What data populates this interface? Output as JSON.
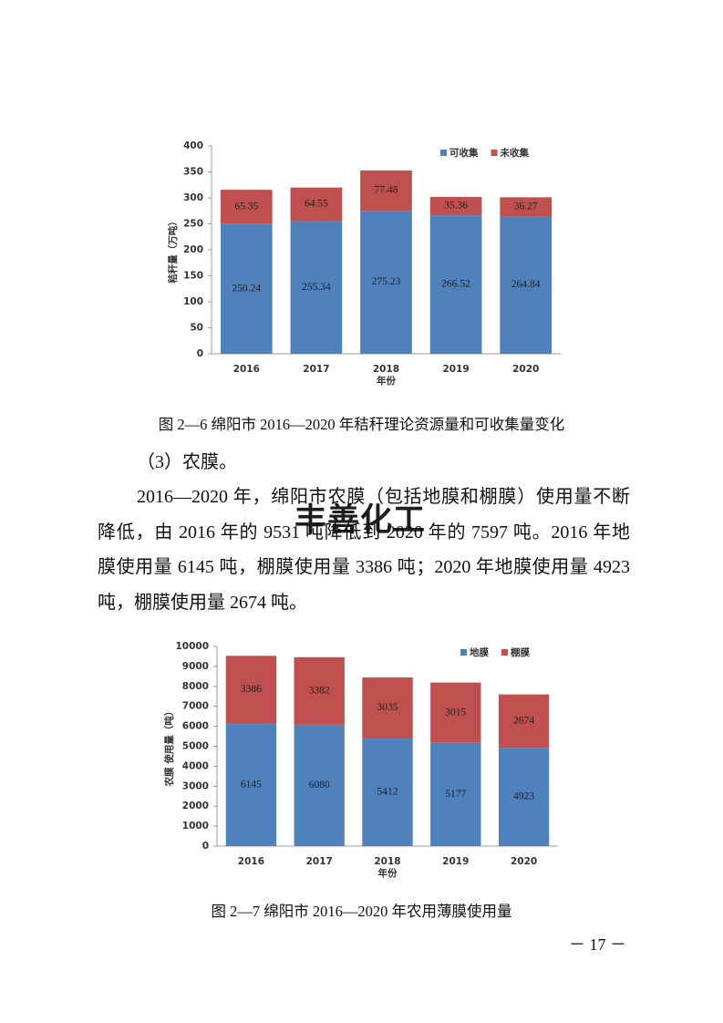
{
  "chart_data": [
    {
      "type": "bar",
      "stacked": true,
      "x_label": "年份",
      "y_label": "秸秆量（万吨）",
      "categories": [
        "2016",
        "2017",
        "2018",
        "2019",
        "2020"
      ],
      "series": [
        {
          "name": "可收集",
          "color": "#4f81bd",
          "values": [
            250.24,
            255.34,
            275.23,
            266.52,
            264.84
          ]
        },
        {
          "name": "未收集",
          "color": "#c0504d",
          "values": [
            65.35,
            64.55,
            77.48,
            35.36,
            36.27
          ]
        }
      ],
      "ylim": [
        0,
        400
      ],
      "yticks": [
        0,
        50,
        100,
        150,
        200,
        250,
        300,
        350,
        400
      ],
      "legend": "top-right"
    },
    {
      "type": "bar",
      "stacked": true,
      "x_label": "年份",
      "y_label": "农膜 使用量（吨）",
      "categories": [
        "2016",
        "2017",
        "2018",
        "2019",
        "2020"
      ],
      "series": [
        {
          "name": "地膜",
          "color": "#4f81bd",
          "values": [
            6145,
            6080,
            5412,
            5177,
            4923
          ]
        },
        {
          "name": "棚膜",
          "color": "#c0504d",
          "values": [
            3386,
            3382,
            3035,
            3015,
            2674
          ]
        }
      ],
      "ylim": [
        0,
        10000
      ],
      "yticks": [
        0,
        1000,
        2000,
        3000,
        4000,
        5000,
        6000,
        7000,
        8000,
        9000,
        10000
      ],
      "legend": "top-right"
    }
  ],
  "document": {
    "caption_1": "图 2—6 绵阳市 2016—2020 年秸秆理论资源量和可收集量变化",
    "heading": "（3）农膜。",
    "paragraph": "2016—2020 年，绵阳市农膜（包括地膜和棚膜）使用量不断降低，由 2016 年的 9531 吨降低到 2020 年的 7597 吨。2016 年地膜使用量 6145 吨，棚膜使用量 3386 吨；2020 年地膜使用量 4923 吨，棚膜使用量 2674 吨。",
    "watermark": "丰善化工",
    "caption_2": "图 2—7 绵阳市 2016—2020 年农用薄膜使用量",
    "page_number": "－ 17 －"
  }
}
